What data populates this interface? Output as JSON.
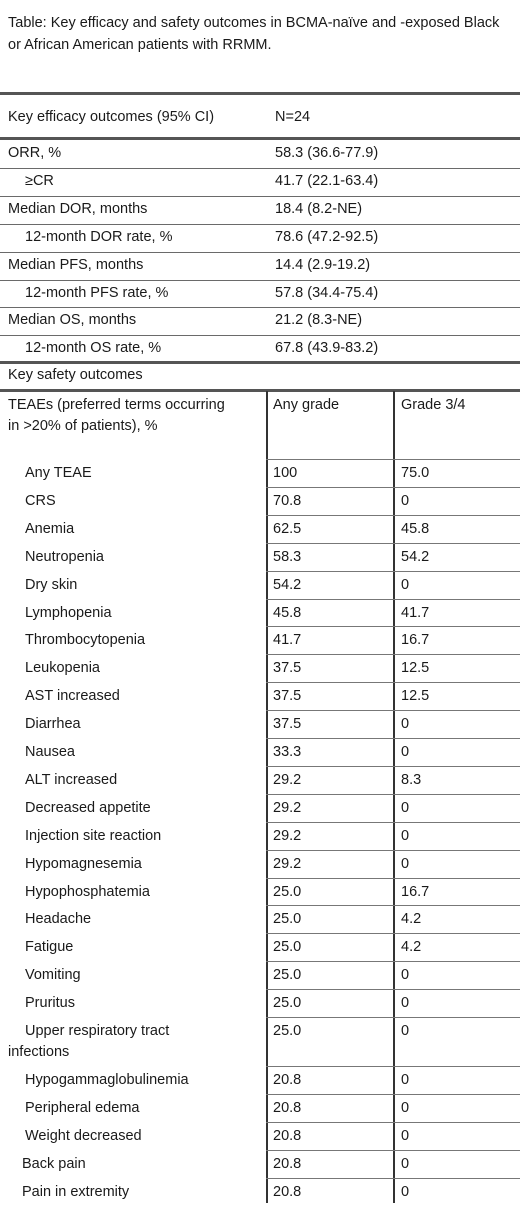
{
  "caption": "Table: Key efficacy and safety outcomes in BCMA-naïve and -exposed Black or African American patients with RRMM.",
  "efficacy": {
    "header_label": "Key efficacy outcomes (95% CI)",
    "header_n": "N=24",
    "rows": [
      {
        "label": "ORR, %",
        "value": "58.3 (36.6-77.9)",
        "indent": false
      },
      {
        "label": "≥CR",
        "value": "41.7 (22.1-63.4)",
        "indent": true
      },
      {
        "label": "Median DOR, months",
        "value": "18.4 (8.2-NE)",
        "indent": false
      },
      {
        "label": "12-month DOR rate, %",
        "value": "78.6 (47.2-92.5)",
        "indent": true
      },
      {
        "label": "Median PFS, months",
        "value": "14.4 (2.9-19.2)",
        "indent": false
      },
      {
        "label": "12-month PFS rate, %",
        "value": "57.8 (34.4-75.4)",
        "indent": true
      },
      {
        "label": "Median OS, months",
        "value": "21.2 (8.3-NE)",
        "indent": false
      },
      {
        "label": "12-month OS rate, %",
        "value": "67.8 (43.9-83.2)",
        "indent": true
      }
    ]
  },
  "safety": {
    "section_title": "Key safety outcomes",
    "header_label_line1": "TEAEs (preferred terms occurring",
    "header_label_line2": "in >20% of patients), %",
    "header_any": "Any grade",
    "header_g34": "Grade 3/4",
    "rows": [
      {
        "label": "Any TEAE",
        "any": "100",
        "g34": "75.0"
      },
      {
        "label": "CRS",
        "any": "70.8",
        "g34": "0"
      },
      {
        "label": "Anemia",
        "any": "62.5",
        "g34": "45.8"
      },
      {
        "label": "Neutropenia",
        "any": "58.3",
        "g34": "54.2"
      },
      {
        "label": "Dry skin",
        "any": "54.2",
        "g34": "0"
      },
      {
        "label": "Lymphopenia",
        "any": "45.8",
        "g34": "41.7"
      },
      {
        "label": "Thrombocytopenia",
        "any": "41.7",
        "g34": "16.7"
      },
      {
        "label": "Leukopenia",
        "any": "37.5",
        "g34": "12.5"
      },
      {
        "label": "AST increased",
        "any": "37.5",
        "g34": "12.5"
      },
      {
        "label": "Diarrhea",
        "any": "37.5",
        "g34": "0"
      },
      {
        "label": "Nausea",
        "any": "33.3",
        "g34": "0"
      },
      {
        "label": "ALT increased",
        "any": "29.2",
        "g34": "8.3"
      },
      {
        "label": "Decreased appetite",
        "any": "29.2",
        "g34": "0"
      },
      {
        "label": "Injection site reaction",
        "any": "29.2",
        "g34": "0"
      },
      {
        "label": "Hypomagnesemia",
        "any": "29.2",
        "g34": "0"
      },
      {
        "label": "Hypophosphatemia",
        "any": "25.0",
        "g34": "16.7"
      },
      {
        "label": "Headache",
        "any": "25.0",
        "g34": "4.2"
      },
      {
        "label": "Fatigue",
        "any": "25.0",
        "g34": "4.2"
      },
      {
        "label": "Vomiting",
        "any": "25.0",
        "g34": "0"
      },
      {
        "label": "Pruritus",
        "any": "25.0",
        "g34": "0"
      },
      {
        "label": "Upper respiratory tract",
        "label2": "infections",
        "any": "25.0",
        "g34": "0"
      },
      {
        "label": "Hypogammaglobulinemia",
        "any": "20.8",
        "g34": "0"
      },
      {
        "label": "Peripheral edema",
        "any": "20.8",
        "g34": "0"
      },
      {
        "label": "Weight decreased",
        "any": "20.8",
        "g34": "0"
      },
      {
        "label": "Back pain",
        "any": "20.8",
        "g34": "0"
      },
      {
        "label": "Pain in extremity",
        "any": "20.8",
        "g34": "0"
      }
    ]
  }
}
